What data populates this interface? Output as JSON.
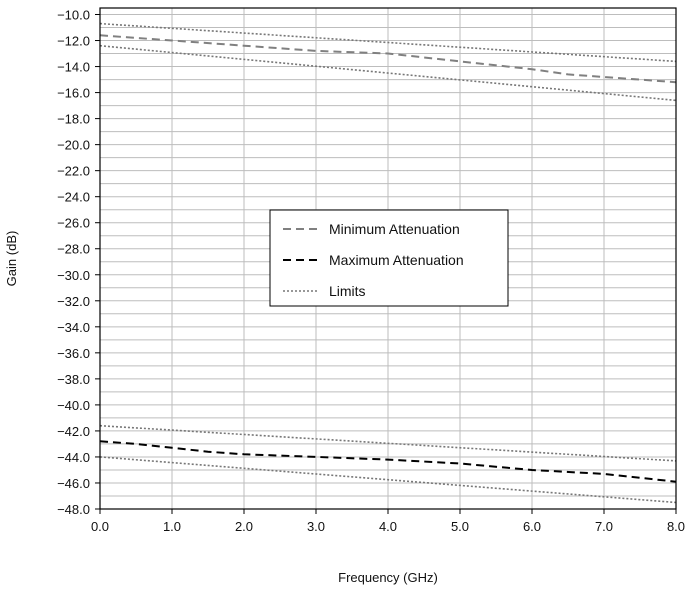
{
  "chart_data": {
    "type": "line",
    "xlabel": "Frequency (GHz)",
    "ylabel": "Gain (dB)",
    "xlim": [
      0,
      8
    ],
    "ylim": [
      -48,
      -9.5
    ],
    "x_ticks": [
      "0.0",
      "1.0",
      "2.0",
      "3.0",
      "4.0",
      "5.0",
      "6.0",
      "7.0",
      "8.0"
    ],
    "y_ticks": [
      "−10.0",
      "−12.0",
      "−14.0",
      "−16.0",
      "−18.0",
      "−20.0",
      "−22.0",
      "−24.0",
      "−26.0",
      "−28.0",
      "−30.0",
      "−32.0",
      "−34.0",
      "−36.0",
      "−38.0",
      "−40.0",
      "−42.0",
      "−44.0",
      "−46.0",
      "−48.0"
    ],
    "grid": true,
    "legend_position": "center",
    "series": [
      {
        "name": "Minimum Attenuation",
        "style": "dashed",
        "color": "#808080",
        "points": [
          [
            0,
            -11.6
          ],
          [
            0.5,
            -11.8
          ],
          [
            1,
            -12.0
          ],
          [
            2,
            -12.4
          ],
          [
            3,
            -12.8
          ],
          [
            4,
            -13.0
          ],
          [
            5,
            -13.6
          ],
          [
            6,
            -14.2
          ],
          [
            6.5,
            -14.6
          ],
          [
            7,
            -14.8
          ],
          [
            8,
            -15.2
          ]
        ]
      },
      {
        "name": "Maximum Attenuation",
        "style": "dashed",
        "color": "#000000",
        "points": [
          [
            0,
            -42.8
          ],
          [
            0.5,
            -43.0
          ],
          [
            1,
            -43.3
          ],
          [
            1.5,
            -43.6
          ],
          [
            2,
            -43.8
          ],
          [
            3,
            -44.0
          ],
          [
            4,
            -44.2
          ],
          [
            5,
            -44.5
          ],
          [
            6,
            -45.0
          ],
          [
            7,
            -45.3
          ],
          [
            8,
            -45.9
          ]
        ]
      },
      {
        "name": "Limits",
        "style": "dotted",
        "color": "#777777",
        "points": [
          [
            0,
            -10.7
          ],
          [
            8,
            -13.6
          ]
        ]
      },
      {
        "name": "",
        "style": "dotted",
        "color": "#777777",
        "points": [
          [
            0,
            -12.4
          ],
          [
            8,
            -16.6
          ]
        ]
      },
      {
        "name": "",
        "style": "dotted",
        "color": "#777777",
        "points": [
          [
            0,
            -41.6
          ],
          [
            8,
            -44.3
          ]
        ]
      },
      {
        "name": "",
        "style": "dotted",
        "color": "#777777",
        "points": [
          [
            0,
            -44.0
          ],
          [
            8,
            -47.5
          ]
        ]
      }
    ],
    "legend": [
      {
        "label": "Minimum Attenuation",
        "style": "dashed",
        "color": "#808080"
      },
      {
        "label": "Maximum Attenuation",
        "style": "dashed",
        "color": "#000000"
      },
      {
        "label": "Limits",
        "style": "dotted",
        "color": "#777777"
      }
    ]
  }
}
